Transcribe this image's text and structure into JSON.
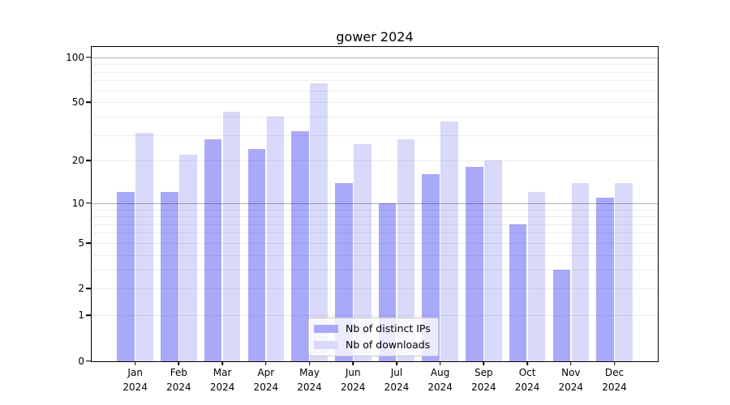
{
  "title": "gower 2024",
  "colors": {
    "distinct_ips": "#a9a9fa",
    "downloads": "#d9d9fa",
    "spine": "#000000",
    "grid_minor": "rgba(0,0,0,0.07)",
    "grid_major": "rgba(0,0,0,0.30)"
  },
  "legend": {
    "items": [
      {
        "label": "Nb of distinct IPs",
        "color": "#a9a9fa"
      },
      {
        "label": "Nb of downloads",
        "color": "#d9d9fa"
      }
    ]
  },
  "chart_data": {
    "type": "bar",
    "title": "gower 2024",
    "categories": [
      "Jan",
      "Feb",
      "Mar",
      "Apr",
      "May",
      "Jun",
      "Jul",
      "Aug",
      "Sep",
      "Oct",
      "Nov",
      "Dec"
    ],
    "category_year": "2024",
    "series": [
      {
        "name": "Nb of distinct IPs",
        "color": "#a9a9fa",
        "values": [
          12,
          12,
          28,
          24,
          32,
          14,
          10,
          16,
          18,
          7,
          3,
          11
        ]
      },
      {
        "name": "Nb of downloads",
        "color": "#d9d9fa",
        "values": [
          31,
          22,
          43,
          40,
          67,
          26,
          28,
          37,
          20,
          12,
          14,
          14
        ]
      }
    ],
    "xlabel": "",
    "ylabel": "",
    "y_scale": "log1p",
    "ylim": [
      0,
      117
    ],
    "y_tick_labels": [
      "100",
      "50",
      "20",
      "10",
      "5",
      "2",
      "1",
      "0"
    ],
    "y_ticks": [
      100,
      50,
      20,
      10,
      5,
      2,
      1,
      0
    ],
    "grid_lines": [
      1,
      2,
      3,
      4,
      5,
      6,
      7,
      8,
      9,
      10,
      20,
      30,
      40,
      50,
      60,
      70,
      80,
      90,
      100
    ],
    "grid_emphasis": [
      10,
      100
    ],
    "grid": true,
    "legend_position": "lower center"
  }
}
